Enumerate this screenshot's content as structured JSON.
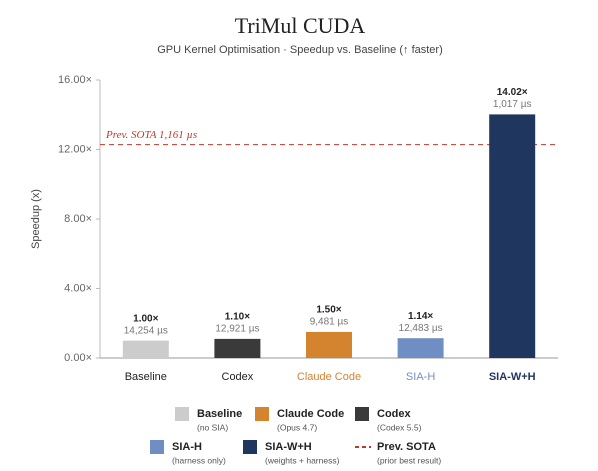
{
  "chart_data": {
    "type": "bar",
    "title": "TriMul CUDA",
    "subtitle": "GPU Kernel Optimisation · Speedup vs. Baseline (↑ faster)",
    "y_label": "Speedup (x)",
    "categories": [
      "Baseline",
      "Codex",
      "Claude Code",
      "SIA-H",
      "SIA-W+H"
    ],
    "values": [
      1.0,
      1.1,
      1.5,
      1.14,
      14.02
    ],
    "value_labels": [
      "1.00×",
      "1.10×",
      "1.50×",
      "1.14×",
      "14.02×"
    ],
    "time_labels": [
      "14,254 µs",
      "12,921 µs",
      "9,481 µs",
      "12,483 µs",
      "1,017 µs"
    ],
    "colors": [
      "#cccccc",
      "#3a3a3a",
      "#d4832f",
      "#6f8fc4",
      "#1f365e"
    ],
    "category_label_colors": [
      "#222222",
      "#222222",
      "#d4832f",
      "#6f8fc4",
      "#1f365e"
    ],
    "ylim": [
      0,
      16
    ],
    "yticks": [
      {
        "value": 0,
        "label": "0.00×"
      },
      {
        "value": 4,
        "label": "4.00×"
      },
      {
        "value": 8,
        "label": "8.00×"
      },
      {
        "value": 12,
        "label": "12.00×"
      },
      {
        "value": 16,
        "label": "16.00×"
      }
    ],
    "grid": false,
    "reference": {
      "value": 12.28,
      "label": "Prev. SOTA 1,161 µs",
      "color": "#c0392b"
    },
    "legend": [
      {
        "name": "Baseline",
        "note": "(no SIA)",
        "color": "#cccccc"
      },
      {
        "name": "Claude Code",
        "note": "(Opus 4.7)",
        "color": "#d4832f"
      },
      {
        "name": "Codex",
        "note": "(Codex 5.5)",
        "color": "#3a3a3a"
      },
      {
        "name": "SIA-H",
        "note": "(harness only)",
        "color": "#6f8fc4"
      },
      {
        "name": "SIA-W+H",
        "note": "(weights + harness)",
        "color": "#1f365e"
      },
      {
        "name": "Prev. SOTA",
        "note": "(prior best result)",
        "color": "#c0392b",
        "dashed": true
      }
    ]
  }
}
